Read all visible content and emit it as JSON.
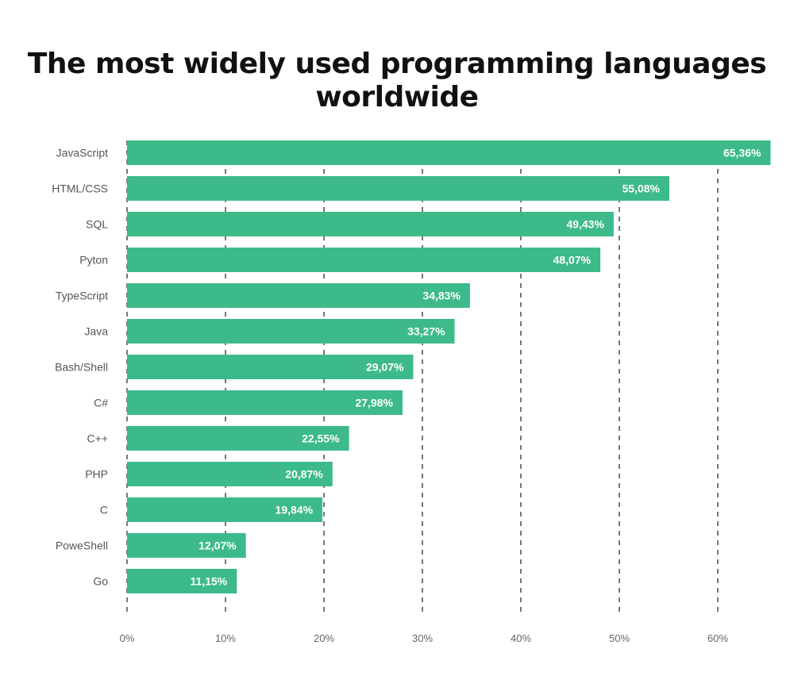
{
  "chart_data": {
    "type": "bar",
    "orientation": "horizontal",
    "title": "The most widely used programming languages worldwide",
    "categories": [
      "JavaScript",
      "HTML/CSS",
      "SQL",
      "Pyton",
      "TypeScript",
      "Java",
      "Bash/Shell",
      "C#",
      "C++",
      "PHP",
      "C",
      "PoweShell",
      "Go"
    ],
    "values": [
      65.36,
      55.08,
      49.43,
      48.07,
      34.83,
      33.27,
      29.07,
      27.98,
      22.55,
      20.87,
      19.84,
      12.07,
      11.15
    ],
    "value_labels": [
      "65,36%",
      "55,08%",
      "49,43%",
      "48,07%",
      "34,83%",
      "33,27%",
      "29,07%",
      "27,98%",
      "22,55%",
      "20,87%",
      "19,84%",
      "12,07%",
      "11,15%"
    ],
    "xlim": [
      0,
      60
    ],
    "xticks": [
      0,
      10,
      20,
      30,
      40,
      50,
      60
    ],
    "xtick_labels": [
      "0%",
      "10%",
      "20%",
      "30%",
      "40%",
      "50%",
      "60%"
    ],
    "grid": "vertical dashed",
    "bar_color": "#3dba8a"
  }
}
